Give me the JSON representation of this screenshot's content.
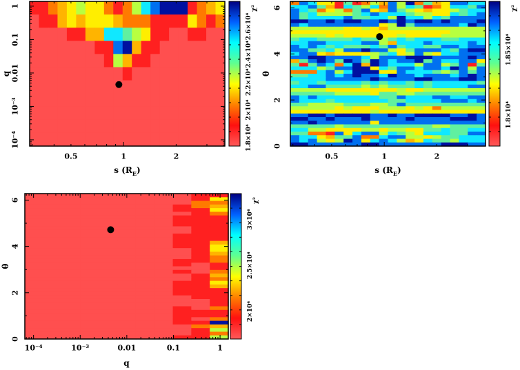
{
  "palette": [
    "#ff4f4f",
    "#ff2020",
    "#ff7a00",
    "#ffb400",
    "#ffee00",
    "#b8ff40",
    "#60f0a0",
    "#10e8ff",
    "#0070f0",
    "#0010a0"
  ],
  "colorbar_gradient": [
    "#ff5a5a",
    "#ff1010",
    "#ff8000",
    "#ffff00",
    "#60ff90",
    "#00ffff",
    "#0060ff",
    "#000080"
  ],
  "chart_data": [
    {
      "type": "heatmap",
      "xlabel": {
        "main": "s (R",
        "sub": "E",
        "end": ")"
      },
      "ylabel": "q",
      "xscale": "log",
      "yscale": "log",
      "xlim": [
        0.29,
        3.8
      ],
      "ylim": [
        6.5e-05,
        1.39
      ],
      "x_ticks": [
        {
          "value": 0.5,
          "label": "0.5"
        },
        {
          "value": 1,
          "label": "1"
        },
        {
          "value": 2,
          "label": "2"
        }
      ],
      "y_ticks": [
        {
          "value": 0.0001,
          "label": "10⁻⁴"
        },
        {
          "value": 0.001,
          "label": "10⁻³"
        },
        {
          "value": 0.01,
          "label": "0.01"
        },
        {
          "value": 0.1,
          "label": "0.1"
        },
        {
          "value": 1,
          "label": "1"
        }
      ],
      "colorbar": {
        "label": "χ²",
        "range": [
          17400,
          27800
        ],
        "ticks": [
          {
            "value": 18000,
            "label": "1.8×10⁴"
          },
          {
            "value": 20000,
            "label": "2×10⁴"
          },
          {
            "value": 22000,
            "label": "2.2×10⁴"
          },
          {
            "value": 24000,
            "label": "2.4×10⁴"
          },
          {
            "value": 26000,
            "label": "2.6×10⁴"
          }
        ]
      },
      "grid_levels_top_to_bottom": [
        "112345442125789991234",
        "011343444322211114212",
        "000011337765411001100",
        "000000011893110000000",
        "000000001531100000000",
        "000000000010000000000",
        "000000000000000000000",
        "000000000000000000000",
        "000000000000000000000",
        "000000000000000000000",
        "000000000000000000000"
      ],
      "best_fit": {
        "x": 0.94,
        "y": 0.0045
      }
    },
    {
      "type": "heatmap",
      "xlabel": {
        "main": "s (R",
        "sub": "E",
        "end": ")"
      },
      "ylabel": "θ",
      "xscale": "log",
      "yscale": "linear",
      "xlim": [
        0.29,
        3.8
      ],
      "ylim": [
        0,
        6.28
      ],
      "x_ticks": [
        {
          "value": 0.5,
          "label": "0.5"
        },
        {
          "value": 1,
          "label": "1"
        },
        {
          "value": 2,
          "label": "2"
        }
      ],
      "y_ticks": [
        {
          "value": 0,
          "label": "0"
        },
        {
          "value": 2,
          "label": "2"
        },
        {
          "value": 4,
          "label": "4"
        },
        {
          "value": 6,
          "label": "6"
        }
      ],
      "colorbar": {
        "label": "χ²",
        "range": [
          17760,
          18870
        ],
        "ticks": [
          {
            "value": 18000,
            "label": "1.8×10⁴"
          },
          {
            "value": 18500,
            "label": "1.85×10⁴"
          }
        ]
      },
      "grid_levels_top_to_bottom": [
        "2874416125385926348877",
        "7786317657285761247768",
        "8762452684386543445677",
        "8675555678777655447678",
        "8677778667759775768888",
        "9988989988989899898889",
        "8788888888459688888798",
        "5555554454355555555555",
        "4444444444444444445555",
        "5555454444445444455555",
        "6776666766567677766777",
        "7788777788537778777787",
        "8787676667686776688788",
        "8866758898854688876899",
        "7884344445674585477888",
        "8899888875888999888898",
        "3689869869878896877884",
        "6168727939877758856816",
        "7775688994768878879858",
        "2227857999448777656868",
        "6677878988798878887898",
        "7777888889888899888998",
        "6776777767677676777776",
        "7788666656566676777788",
        "5555444444445445555555",
        "6666655554665566666666",
        "8787777777668777887788",
        "8777677777766777788878",
        "6655556665568666666666",
        "5555545444555454255555",
        "4444444445444444444444",
        "8899899998898899998898",
        "9988988898888988889998",
        "8898888884888888888888",
        "6666656666666666556666",
        "7755444455455446676677",
        "6622184788576547776688",
        "8774366822788554566777",
        "8785459847875347665777",
        "9988888899888888899988"
      ],
      "best_fit": {
        "x": 0.94,
        "y": 4.75
      }
    },
    {
      "type": "heatmap",
      "xlabel": {
        "main": "q",
        "sub": "",
        "end": ""
      },
      "ylabel": "θ",
      "xscale": "log",
      "yscale": "linear",
      "xlim": [
        6.5e-05,
        1.5
      ],
      "ylim": [
        0,
        6.28
      ],
      "x_ticks": [
        {
          "value": 0.0001,
          "label": "10⁻⁴"
        },
        {
          "value": 0.001,
          "label": "10⁻³"
        },
        {
          "value": 0.01,
          "label": "0.01"
        },
        {
          "value": 0.1,
          "label": "0.1"
        },
        {
          "value": 1,
          "label": "1"
        }
      ],
      "y_ticks": [
        {
          "value": 0,
          "label": "0"
        },
        {
          "value": 2,
          "label": "2"
        },
        {
          "value": 4,
          "label": "4"
        },
        {
          "value": 6,
          "label": "6"
        }
      ],
      "colorbar": {
        "label": "χ²",
        "range": [
          17000,
          32800
        ],
        "ticks": [
          {
            "value": 20000,
            "label": "2×10⁴"
          },
          {
            "value": 25000,
            "label": "2.5×10⁴"
          },
          {
            "value": 30000,
            "label": "3×10⁴"
          }
        ]
      },
      "grid_levels_top_to_bottom": [
        "00000000011",
        "00000000014",
        "00000000022",
        "00000000123",
        "00000000114",
        "00000000012",
        "00000000111",
        "00000000111",
        "00000000111",
        "00000000011",
        "00000000011",
        "00000000111",
        "00000000111",
        "00000000113",
        "00000000114",
        "00000000014",
        "00000000013",
        "00000000012",
        "00000000112",
        "00000000101",
        "00000000001",
        "00000000102",
        "00000000013",
        "00000000012",
        "00000000114",
        "00000000113",
        "00000000111",
        "00000000111",
        "00000000011",
        "00000000001",
        "00000000001",
        "00000000102",
        "00000000111",
        "00000000111",
        "00000000102",
        "00000000119",
        "00000000023",
        "00000000015",
        "00000000012",
        "00000000115"
      ],
      "best_fit": {
        "x": 0.0045,
        "y": 4.72
      }
    }
  ]
}
